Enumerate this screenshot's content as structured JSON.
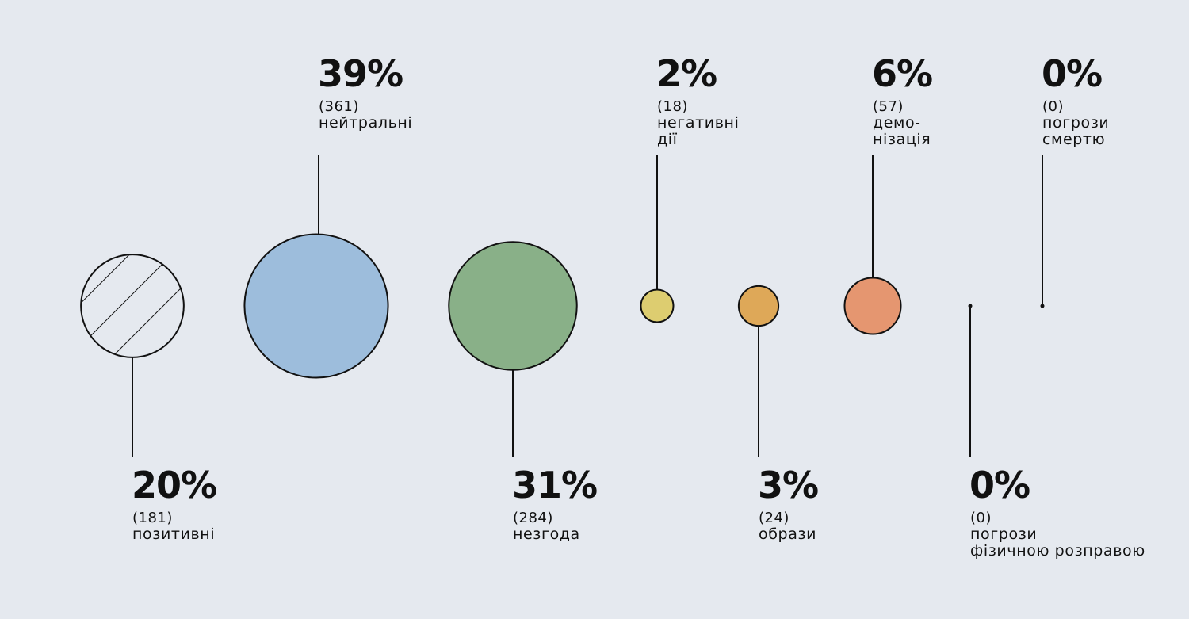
{
  "chart_data": {
    "type": "bubble",
    "series": [
      {
        "percent_label": "20%",
        "count_label": "(181)",
        "label_lines": [
          "позитивні"
        ],
        "percent": 20,
        "count": 181,
        "color": "#e5e9ef",
        "hatched": true,
        "label_position": "below"
      },
      {
        "percent_label": "39%",
        "count_label": "(361)",
        "label_lines": [
          "нейтральні"
        ],
        "percent": 39,
        "count": 361,
        "color": "#9dbddc",
        "hatched": false,
        "label_position": "above"
      },
      {
        "percent_label": "31%",
        "count_label": "(284)",
        "label_lines": [
          "незгода"
        ],
        "percent": 31,
        "count": 284,
        "color": "#89b088",
        "hatched": false,
        "label_position": "below"
      },
      {
        "percent_label": "2%",
        "count_label": "(18)",
        "label_lines": [
          "негативні",
          "дії"
        ],
        "percent": 2,
        "count": 18,
        "color": "#ddcd70",
        "hatched": false,
        "label_position": "above"
      },
      {
        "percent_label": "3%",
        "count_label": "(24)",
        "label_lines": [
          "образи"
        ],
        "percent": 3,
        "count": 24,
        "color": "#dea858",
        "hatched": false,
        "label_position": "below"
      },
      {
        "percent_label": "6%",
        "count_label": "(57)",
        "label_lines": [
          "демо-",
          "нізація"
        ],
        "percent": 6,
        "count": 57,
        "color": "#e59670",
        "hatched": false,
        "label_position": "above"
      },
      {
        "percent_label": "0%",
        "count_label": "(0)",
        "label_lines": [
          "погрози",
          "фізичною розправою"
        ],
        "percent": 0,
        "count": 0,
        "color": "#111111",
        "hatched": false,
        "label_position": "below"
      },
      {
        "percent_label": "0%",
        "count_label": "(0)",
        "label_lines": [
          "погрози",
          "смертю"
        ],
        "percent": 0,
        "count": 0,
        "color": "#111111",
        "hatched": false,
        "label_position": "above"
      }
    ]
  }
}
